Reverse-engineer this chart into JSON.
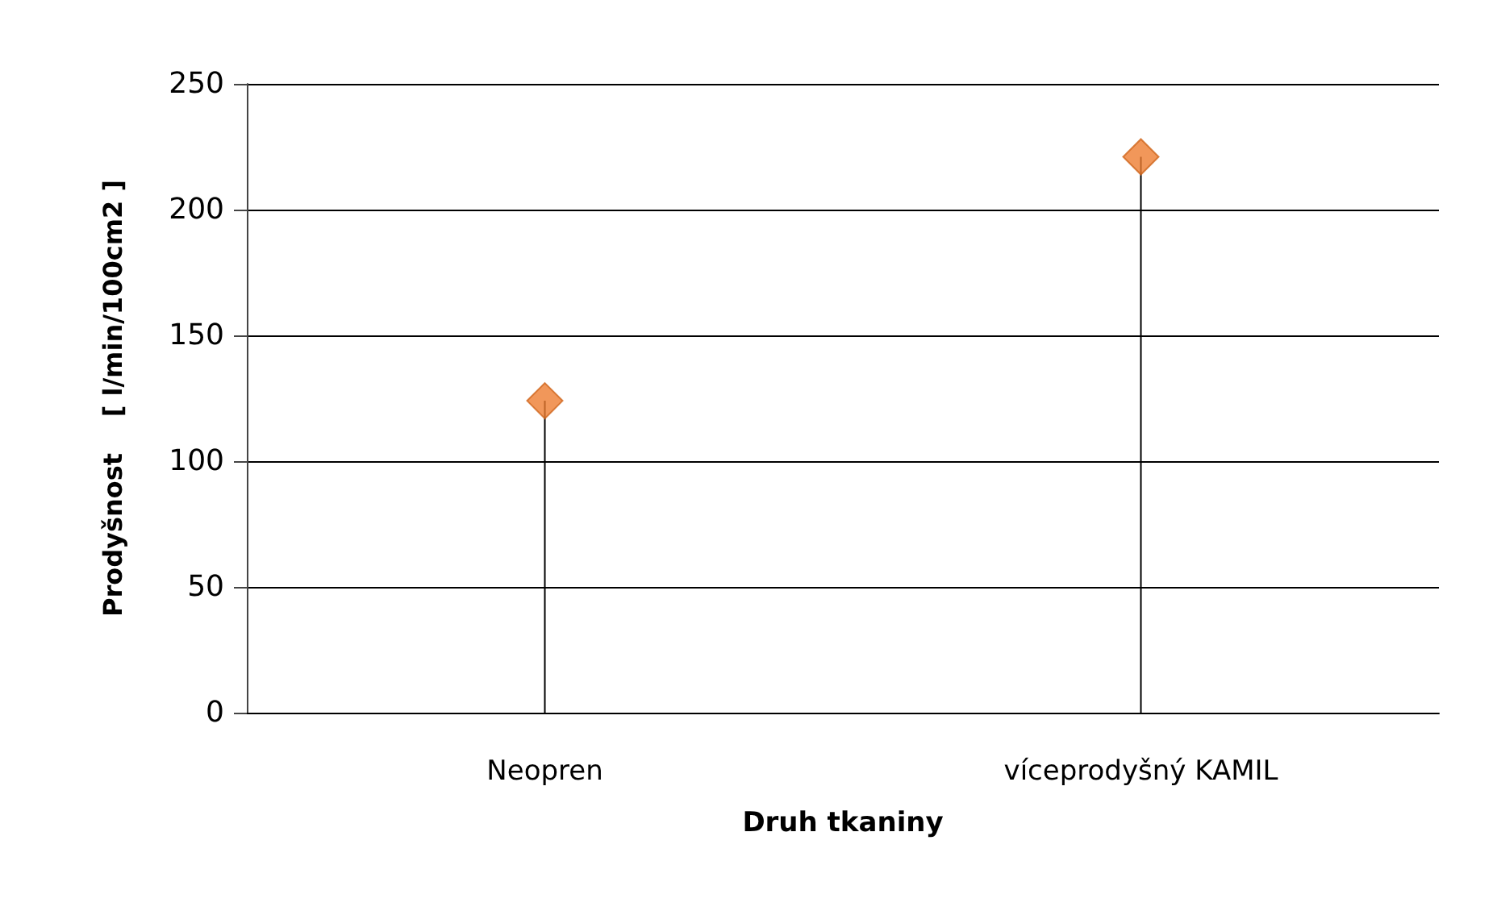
{
  "chart_data": {
    "type": "lollipop",
    "xlabel": "Druh tkaniny",
    "ylabel": "Prodyšnost    [ l/min/100cm2 ]",
    "categories": [
      "Neopren",
      "víceprodyšný KAMIL"
    ],
    "values": [
      124,
      221
    ],
    "color": "#ed7d31",
    "marker": "diamond",
    "ylim": [
      0,
      250
    ],
    "yticks": [
      0,
      50,
      100,
      150,
      200,
      250
    ],
    "grid": "y"
  }
}
